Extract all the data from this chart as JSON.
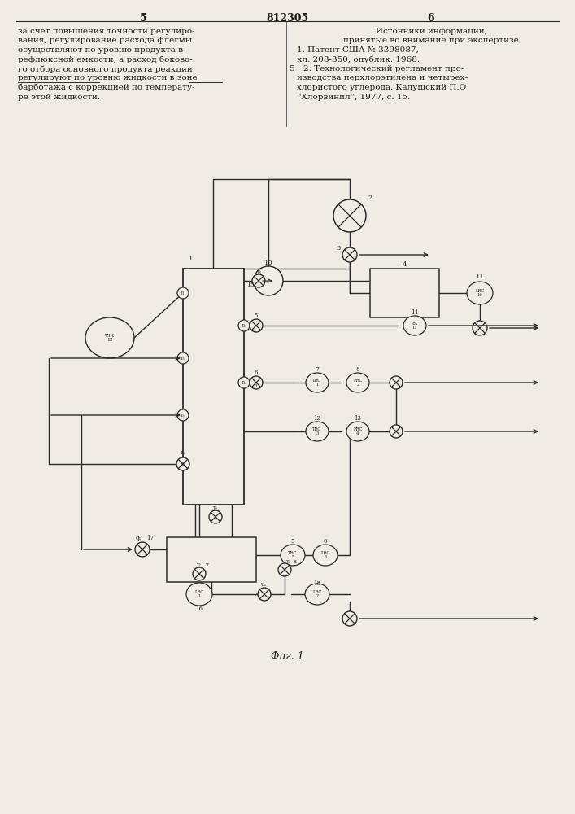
{
  "page_bg": "#f0ece4",
  "text_color": "#1a1a1a",
  "line_color": "#2a2a2a",
  "page_number_left": "5",
  "page_number_center": "812305",
  "page_number_right": "6",
  "fig_label": "Фиг. 1",
  "left_col_lines": [
    "за счет повышения точности регулиро-",
    "вания, регулирование расхода флегмы",
    "осуществляют по уровню продукта в",
    "рефлюксной емкости, а расход боково-",
    "го отбора основного продукта реакции",
    "регулируют по уровню жидкости в зоне",
    "барботажа с коррекцией по температу-",
    "ре этой жидкости."
  ],
  "right_col_lines": [
    "Источники информации,",
    "принятые во внимание при экспертизе",
    "1. Патент США № 3398087,",
    "кл. 208-350, опублик. 1968.",
    "2. Технологический регламент про-",
    "изводства перхлорэтилена и четырех-",
    "хлористого углерода. Калушский П.О",
    "''Xлорвинил'', 1977, с. 15."
  ]
}
